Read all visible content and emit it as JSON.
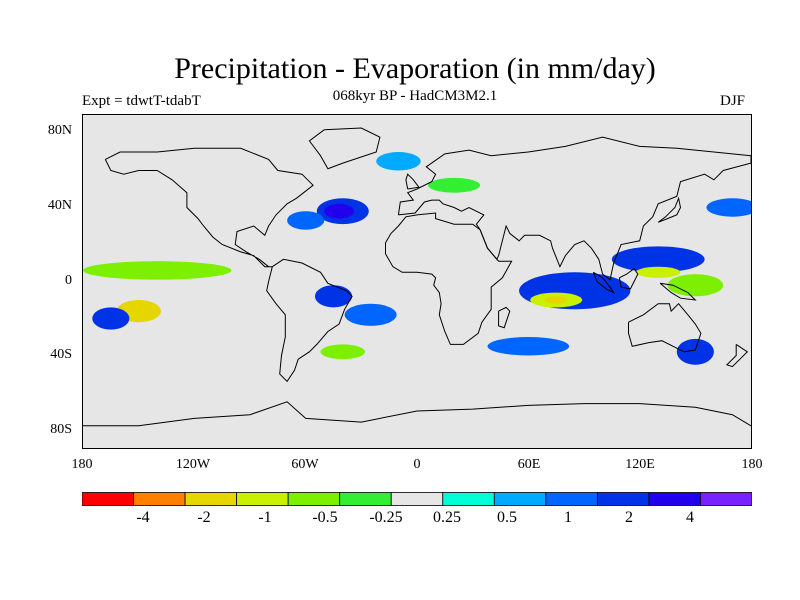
{
  "title": "Precipitation - Evaporation (in mm/day)",
  "subtitle": "068kyr BP - HadCM3M2.1",
  "experiment": "Expt = tdwtT-tdabT",
  "season": "DJF",
  "map": {
    "projection": "cylindrical equidistant",
    "background_color": "#e6e6e6",
    "lat_labels": [
      "80N",
      "40N",
      "0",
      "40S",
      "80S"
    ],
    "lon_labels": [
      "180",
      "120W",
      "60W",
      "0",
      "60E",
      "120E",
      "180"
    ]
  },
  "colorbar": {
    "colors": [
      "#ff0000",
      "#ff7f00",
      "#e6d600",
      "#c8f000",
      "#7cf000",
      "#33ee33",
      "#e6e6e6",
      "#00ffd5",
      "#00aaff",
      "#0066ff",
      "#0033e6",
      "#2200ee",
      "#7722ff"
    ],
    "labels": [
      "-4",
      "-2",
      "-1",
      "-0.5",
      "-0.25",
      "0.25",
      "0.5",
      "1",
      "2",
      "4"
    ]
  },
  "fields": [
    {
      "name": "n-atlantic-wet",
      "level": 10,
      "lon": -40,
      "lat": 38,
      "rx": 14,
      "ry": 7
    },
    {
      "name": "n-atlantic-core",
      "level": 11,
      "lon": -42,
      "lat": 38,
      "rx": 8,
      "ry": 4
    },
    {
      "name": "gulf-stream",
      "level": 9,
      "lon": -60,
      "lat": 33,
      "rx": 10,
      "ry": 5
    },
    {
      "name": "n-pacific-wet",
      "level": 9,
      "lon": 170,
      "lat": 40,
      "rx": 14,
      "ry": 5
    },
    {
      "name": "e-pacific-itcz-dry",
      "level": 1,
      "lon": -140,
      "lat": 4,
      "rx": 28,
      "ry": 2
    },
    {
      "name": "e-pacific-itcz-green",
      "level": 4,
      "lon": -140,
      "lat": 6,
      "rx": 40,
      "ry": 5
    },
    {
      "name": "s-pacific-dry",
      "level": 0,
      "lon": -150,
      "lat": -16,
      "rx": 6,
      "ry": 3
    },
    {
      "name": "s-pacific-orange",
      "level": 2,
      "lon": -150,
      "lat": -16,
      "rx": 12,
      "ry": 6
    },
    {
      "name": "s-pacific-wet-w",
      "level": 10,
      "lon": -165,
      "lat": -20,
      "rx": 10,
      "ry": 6
    },
    {
      "name": "s-atlantic-wet",
      "level": 9,
      "lon": -25,
      "lat": -18,
      "rx": 14,
      "ry": 6
    },
    {
      "name": "brazil-wet",
      "level": 10,
      "lon": -45,
      "lat": -8,
      "rx": 10,
      "ry": 6
    },
    {
      "name": "s-atlantic-green",
      "level": 4,
      "lon": -40,
      "lat": -38,
      "rx": 12,
      "ry": 4
    },
    {
      "name": "indian-ocean-wet",
      "level": 10,
      "lon": 85,
      "lat": -5,
      "rx": 30,
      "ry": 10
    },
    {
      "name": "indian-ocean-dry",
      "level": 3,
      "lon": 75,
      "lat": -10,
      "rx": 14,
      "ry": 4
    },
    {
      "name": "indian-ocean-core",
      "level": 2,
      "lon": 75,
      "lat": -10,
      "rx": 6,
      "ry": 2
    },
    {
      "name": "w-pacific-wet",
      "level": 10,
      "lon": 130,
      "lat": 12,
      "rx": 25,
      "ry": 7
    },
    {
      "name": "w-pacific-dry",
      "level": 3,
      "lon": 130,
      "lat": 5,
      "rx": 12,
      "ry": 3
    },
    {
      "name": "maritime-green",
      "level": 4,
      "lon": 150,
      "lat": -2,
      "rx": 15,
      "ry": 6
    },
    {
      "name": "s-indian-wet",
      "level": 9,
      "lon": 60,
      "lat": -35,
      "rx": 22,
      "ry": 5
    },
    {
      "name": "australia-wet",
      "level": 10,
      "lon": 150,
      "lat": -38,
      "rx": 10,
      "ry": 7
    },
    {
      "name": "n-europe-green",
      "level": 5,
      "lon": 20,
      "lat": 52,
      "rx": 14,
      "ry": 4
    },
    {
      "name": "arctic-wet",
      "level": 8,
      "lon": -10,
      "lat": 65,
      "rx": 12,
      "ry": 5
    }
  ],
  "coastlines": [
    {
      "name": "north-america",
      "points": [
        [
          -168,
          66
        ],
        [
          -160,
          70
        ],
        [
          -140,
          70
        ],
        [
          -120,
          72
        ],
        [
          -95,
          72
        ],
        [
          -80,
          66
        ],
        [
          -75,
          60
        ],
        [
          -62,
          58
        ],
        [
          -56,
          52
        ],
        [
          -65,
          45
        ],
        [
          -70,
          42
        ],
        [
          -76,
          36
        ],
        [
          -80,
          30
        ],
        [
          -82,
          25
        ],
        [
          -88,
          30
        ],
        [
          -97,
          27
        ],
        [
          -98,
          20
        ],
        [
          -92,
          16
        ],
        [
          -85,
          12
        ],
        [
          -80,
          8
        ],
        [
          -78,
          8
        ],
        [
          -82,
          8
        ],
        [
          -88,
          14
        ],
        [
          -95,
          16
        ],
        [
          -105,
          20
        ],
        [
          -110,
          24
        ],
        [
          -115,
          30
        ],
        [
          -118,
          34
        ],
        [
          -124,
          40
        ],
        [
          -124,
          48
        ],
        [
          -132,
          55
        ],
        [
          -140,
          60
        ],
        [
          -150,
          60
        ],
        [
          -158,
          58
        ],
        [
          -165,
          60
        ],
        [
          -168,
          66
        ]
      ]
    },
    {
      "name": "south-america",
      "points": [
        [
          -78,
          8
        ],
        [
          -72,
          12
        ],
        [
          -62,
          10
        ],
        [
          -52,
          5
        ],
        [
          -48,
          -1
        ],
        [
          -38,
          -5
        ],
        [
          -35,
          -8
        ],
        [
          -39,
          -15
        ],
        [
          -42,
          -23
        ],
        [
          -48,
          -27
        ],
        [
          -54,
          -34
        ],
        [
          -58,
          -38
        ],
        [
          -64,
          -42
        ],
        [
          -66,
          -48
        ],
        [
          -70,
          -54
        ],
        [
          -74,
          -50
        ],
        [
          -73,
          -40
        ],
        [
          -71,
          -30
        ],
        [
          -71,
          -18
        ],
        [
          -76,
          -12
        ],
        [
          -81,
          -5
        ],
        [
          -80,
          0
        ],
        [
          -78,
          8
        ]
      ]
    },
    {
      "name": "greenland",
      "points": [
        [
          -50,
          82
        ],
        [
          -30,
          83
        ],
        [
          -20,
          78
        ],
        [
          -22,
          70
        ],
        [
          -40,
          64
        ],
        [
          -48,
          61
        ],
        [
          -52,
          68
        ],
        [
          -58,
          76
        ],
        [
          -50,
          82
        ]
      ]
    },
    {
      "name": "eurasia",
      "points": [
        [
          -10,
          36
        ],
        [
          -9,
          43
        ],
        [
          -2,
          44
        ],
        [
          -5,
          48
        ],
        [
          0,
          50
        ],
        [
          8,
          54
        ],
        [
          10,
          58
        ],
        [
          5,
          62
        ],
        [
          15,
          69
        ],
        [
          28,
          71
        ],
        [
          40,
          68
        ],
        [
          60,
          70
        ],
        [
          80,
          73
        ],
        [
          100,
          78
        ],
        [
          120,
          73
        ],
        [
          140,
          72
        ],
        [
          160,
          70
        ],
        [
          180,
          68
        ],
        [
          180,
          64
        ],
        [
          165,
          60
        ],
        [
          160,
          55
        ],
        [
          155,
          58
        ],
        [
          142,
          54
        ],
        [
          140,
          46
        ],
        [
          130,
          42
        ],
        [
          127,
          35
        ],
        [
          122,
          30
        ],
        [
          120,
          22
        ],
        [
          110,
          20
        ],
        [
          106,
          10
        ],
        [
          104,
          1
        ],
        [
          100,
          4
        ],
        [
          98,
          12
        ],
        [
          94,
          18
        ],
        [
          90,
          22
        ],
        [
          85,
          20
        ],
        [
          80,
          14
        ],
        [
          77,
          8
        ],
        [
          73,
          18
        ],
        [
          72,
          22
        ],
        [
          66,
          25
        ],
        [
          58,
          25
        ],
        [
          55,
          22
        ],
        [
          50,
          26
        ],
        [
          48,
          30
        ],
        [
          44,
          14
        ],
        [
          43,
          12
        ],
        [
          38,
          18
        ],
        [
          34,
          28
        ],
        [
          32,
          31
        ],
        [
          36,
          36
        ],
        [
          28,
          40
        ],
        [
          24,
          38
        ],
        [
          20,
          40
        ],
        [
          14,
          42
        ],
        [
          12,
          44
        ],
        [
          8,
          44
        ],
        [
          4,
          43
        ],
        [
          -1,
          37
        ],
        [
          -10,
          36
        ]
      ]
    },
    {
      "name": "africa",
      "points": [
        [
          -17,
          21
        ],
        [
          -17,
          15
        ],
        [
          -13,
          8
        ],
        [
          -8,
          5
        ],
        [
          0,
          5
        ],
        [
          8,
          4
        ],
        [
          10,
          2
        ],
        [
          9,
          -2
        ],
        [
          12,
          -6
        ],
        [
          13,
          -12
        ],
        [
          12,
          -18
        ],
        [
          15,
          -27
        ],
        [
          18,
          -34
        ],
        [
          25,
          -34
        ],
        [
          33,
          -28
        ],
        [
          35,
          -22
        ],
        [
          40,
          -15
        ],
        [
          40,
          -10
        ],
        [
          40,
          -3
        ],
        [
          46,
          2
        ],
        [
          51,
          11
        ],
        [
          44,
          11
        ],
        [
          38,
          18
        ],
        [
          34,
          28
        ],
        [
          30,
          31
        ],
        [
          20,
          31
        ],
        [
          10,
          34
        ],
        [
          10,
          37
        ],
        [
          0,
          36
        ],
        [
          -6,
          35
        ],
        [
          -10,
          30
        ],
        [
          -14,
          26
        ],
        [
          -17,
          21
        ]
      ]
    },
    {
      "name": "madagascar",
      "points": [
        [
          44,
          -16
        ],
        [
          48,
          -14
        ],
        [
          50,
          -16
        ],
        [
          47,
          -25
        ],
        [
          44,
          -24
        ],
        [
          44,
          -16
        ]
      ]
    },
    {
      "name": "australia",
      "points": [
        [
          114,
          -22
        ],
        [
          122,
          -18
        ],
        [
          130,
          -12
        ],
        [
          136,
          -12
        ],
        [
          137,
          -16
        ],
        [
          141,
          -12
        ],
        [
          146,
          -18
        ],
        [
          150,
          -23
        ],
        [
          153,
          -28
        ],
        [
          150,
          -37
        ],
        [
          144,
          -38
        ],
        [
          138,
          -35
        ],
        [
          132,
          -32
        ],
        [
          125,
          -33
        ],
        [
          116,
          -35
        ],
        [
          114,
          -28
        ],
        [
          114,
          -22
        ]
      ]
    },
    {
      "name": "antarctica",
      "points": [
        [
          -180,
          -78
        ],
        [
          -150,
          -78
        ],
        [
          -120,
          -74
        ],
        [
          -90,
          -72
        ],
        [
          -70,
          -65
        ],
        [
          -60,
          -74
        ],
        [
          -30,
          -76
        ],
        [
          0,
          -70
        ],
        [
          30,
          -69
        ],
        [
          60,
          -67
        ],
        [
          90,
          -66
        ],
        [
          120,
          -66
        ],
        [
          150,
          -68
        ],
        [
          170,
          -72
        ],
        [
          180,
          -78
        ]
      ]
    },
    {
      "name": "borneo",
      "points": [
        [
          109,
          2
        ],
        [
          113,
          4
        ],
        [
          117,
          7
        ],
        [
          119,
          4
        ],
        [
          117,
          0
        ],
        [
          115,
          -4
        ],
        [
          110,
          -3
        ],
        [
          109,
          2
        ]
      ]
    },
    {
      "name": "sumatra",
      "points": [
        [
          95,
          5
        ],
        [
          100,
          2
        ],
        [
          104,
          -3
        ],
        [
          106,
          -6
        ],
        [
          102,
          -4
        ],
        [
          97,
          0
        ],
        [
          95,
          5
        ]
      ]
    },
    {
      "name": "new-guinea",
      "points": [
        [
          131,
          -1
        ],
        [
          138,
          -2
        ],
        [
          146,
          -6
        ],
        [
          150,
          -10
        ],
        [
          142,
          -9
        ],
        [
          137,
          -6
        ],
        [
          131,
          -1
        ]
      ]
    },
    {
      "name": "japan",
      "points": [
        [
          130,
          32
        ],
        [
          135,
          34
        ],
        [
          140,
          36
        ],
        [
          142,
          40
        ],
        [
          141,
          45
        ],
        [
          139,
          40
        ],
        [
          134,
          35
        ],
        [
          130,
          32
        ]
      ]
    },
    {
      "name": "british-isles",
      "points": [
        [
          -5,
          50
        ],
        [
          1,
          51
        ],
        [
          -2,
          55
        ],
        [
          -5,
          58
        ],
        [
          -6,
          55
        ],
        [
          -5,
          50
        ]
      ]
    },
    {
      "name": "new-zealand",
      "points": [
        [
          172,
          -34
        ],
        [
          178,
          -38
        ],
        [
          174,
          -42
        ],
        [
          170,
          -46
        ],
        [
          167,
          -45
        ],
        [
          172,
          -40
        ],
        [
          172,
          -34
        ]
      ]
    }
  ]
}
